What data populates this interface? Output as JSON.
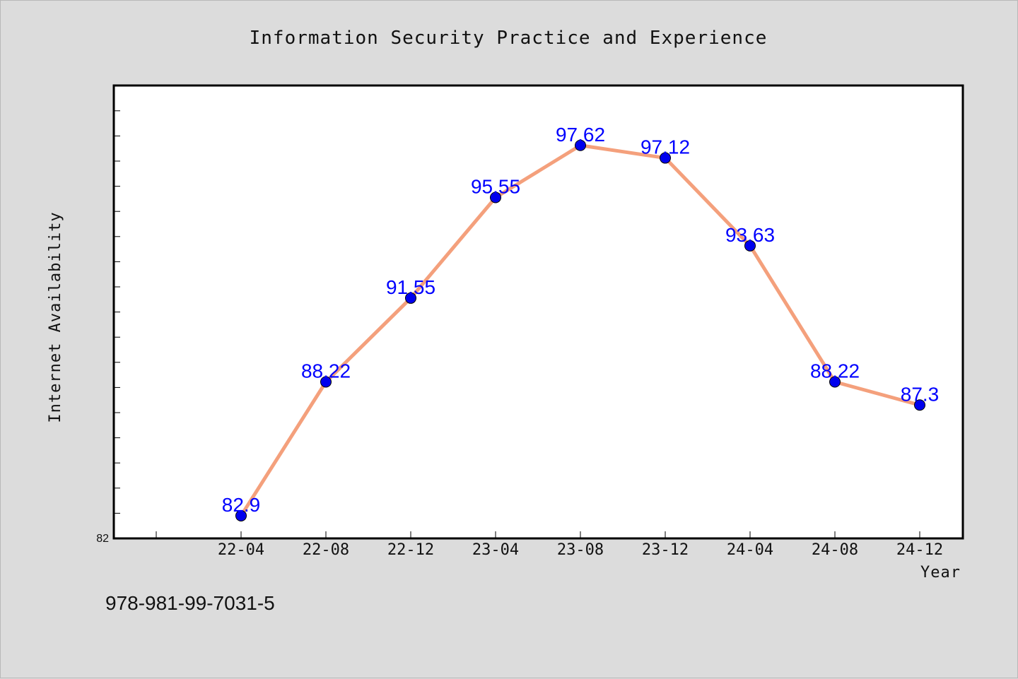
{
  "chart_data": {
    "type": "line",
    "title": "Information Security Practice and Experience",
    "xlabel": "Year",
    "ylabel": "Internet Availability",
    "categories": [
      "22-04",
      "22-08",
      "22-12",
      "23-04",
      "23-08",
      "23-12",
      "24-04",
      "24-08",
      "24-12"
    ],
    "series": [
      {
        "values": [
          82.9,
          88.22,
          91.55,
          95.55,
          97.62,
          97.12,
          93.63,
          88.22,
          87.3
        ],
        "data_labels": [
          "82.9",
          "88.22",
          "91.55",
          "95.55",
          "97.62",
          "97.12",
          "93.63",
          "88.22",
          "87.3"
        ],
        "line_color": "#f4a07c",
        "marker_color": "#0000ee"
      }
    ],
    "ylim": [
      82,
      100
    ],
    "yticks_labeled": [
      "82"
    ],
    "grid": false,
    "legend": "none",
    "label_color": "#0000ff"
  },
  "footer": {
    "text": "978-981-99-7031-5"
  }
}
